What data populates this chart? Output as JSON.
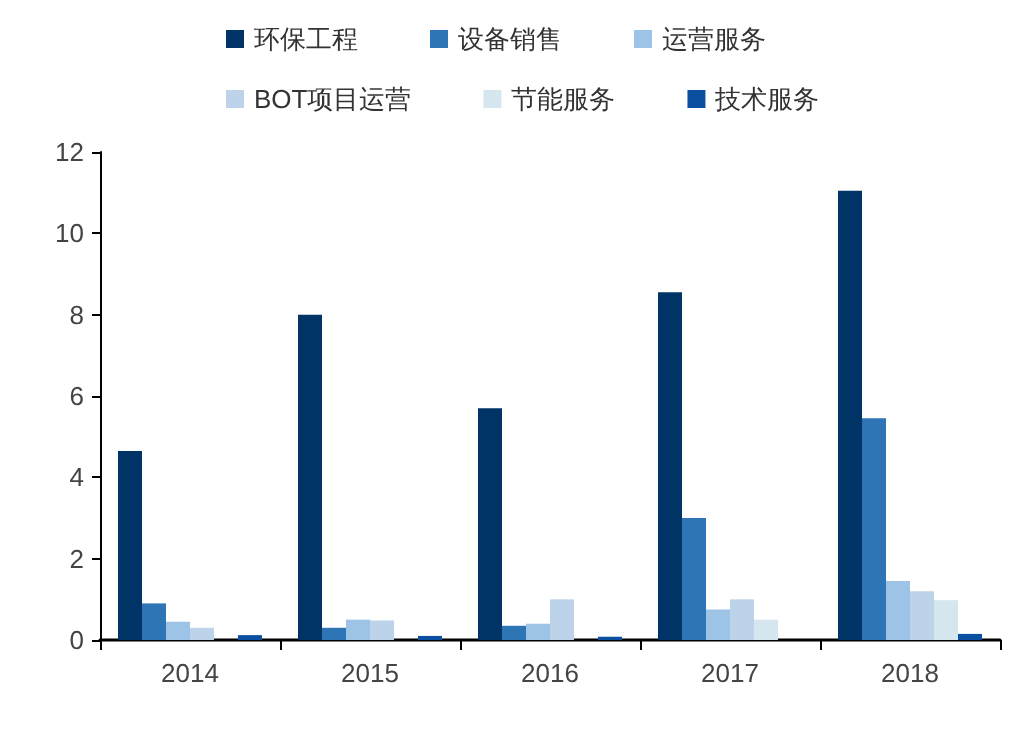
{
  "chart_data": {
    "type": "bar",
    "categories": [
      "2014",
      "2015",
      "2016",
      "2017",
      "2018"
    ],
    "series": [
      {
        "name": "环保工程",
        "color": "#003366",
        "values": [
          4.65,
          8.0,
          5.7,
          8.55,
          11.05
        ]
      },
      {
        "name": "设备销售",
        "color": "#2e75b6",
        "values": [
          0.9,
          0.3,
          0.35,
          3.0,
          5.45
        ]
      },
      {
        "name": "运营服务",
        "color": "#9dc3e6",
        "values": [
          0.45,
          0.5,
          0.4,
          0.75,
          1.45
        ]
      },
      {
        "name": "BOT项目运营",
        "color": "#bcd3ea",
        "values": [
          0.3,
          0.48,
          1.0,
          1.0,
          1.2
        ]
      },
      {
        "name": "节能服务",
        "color": "#d6e6ee",
        "values": [
          0,
          0,
          0,
          0.5,
          0.98
        ]
      },
      {
        "name": "技术服务",
        "color": "#0b4fa0",
        "values": [
          0.12,
          0.1,
          0.08,
          0,
          0.15
        ]
      }
    ],
    "ylim": [
      0,
      12
    ],
    "yticks": [
      0,
      2,
      4,
      6,
      8,
      10,
      12
    ],
    "grid": false,
    "legend": "top"
  }
}
